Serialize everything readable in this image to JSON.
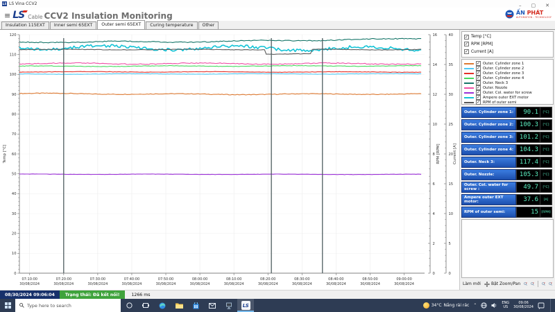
{
  "window": {
    "title": "LS Vina CCV2",
    "minimize": "–",
    "maximize": "▢",
    "close": "✕"
  },
  "header": {
    "menu_icon": "≡",
    "logo_main": "LS",
    "logo_sub": "Cable",
    "title": "CCV2 Insulation Monitoring",
    "brand_name_1": "ẤN",
    "brand_name_2": "PHÁT",
    "brand_tagline": "AUTOMATION - TECHNOLOGY"
  },
  "tabs": [
    {
      "label": "Insulation 115EXT",
      "active": false
    },
    {
      "label": "Inner semi 65EXT",
      "active": false
    },
    {
      "label": "Outer semi 65EXT",
      "active": true
    },
    {
      "label": "Curing temperature",
      "active": false
    },
    {
      "label": "Other",
      "active": false
    }
  ],
  "axis_toggles": [
    {
      "label": "Temp [°C]",
      "checked": true
    },
    {
      "label": "RPM [RPM]",
      "checked": true
    },
    {
      "label": "Current [A]",
      "checked": true
    }
  ],
  "legend": [
    {
      "label": "Outer. Cylinder zone 1",
      "color": "#dd7a33",
      "checked": true
    },
    {
      "label": "Outer. Cylinder zone 2",
      "color": "#4ec9f5",
      "checked": true
    },
    {
      "label": "Outer. Cylinder zone 3",
      "color": "#e33028",
      "checked": true
    },
    {
      "label": "Outer. Cylinder zone 4",
      "color": "#44d95c",
      "checked": true
    },
    {
      "label": "Outer. Neck 3",
      "color": "#157568",
      "checked": true
    },
    {
      "label": "Outer. Nozzle",
      "color": "#ee4fa5",
      "checked": true
    },
    {
      "label": "Outer. Col. water for screw",
      "color": "#9a2fd6",
      "checked": true
    },
    {
      "label": "Ampere outer EXT motor",
      "color": "#12c3d6",
      "checked": true
    },
    {
      "label": "RPM of outer semi",
      "color": "#5a5a5a",
      "checked": true
    }
  ],
  "readings": [
    {
      "label": "Outer. Cylinder zone 1:",
      "value": "90.1",
      "unit": "[°C]"
    },
    {
      "label": "Outer. Cylinder zone 2:",
      "value": "100.3",
      "unit": "[°C]"
    },
    {
      "label": "Outer. Cylinder zone 3:",
      "value": "101.2",
      "unit": "[°C]"
    },
    {
      "label": "Outer. Cylinder zone 4:",
      "value": "104.3",
      "unit": "[°C]"
    },
    {
      "label": "Outer. Neck 3:",
      "value": "117.4",
      "unit": "[°C]"
    },
    {
      "label": "Outer. Nozzle:",
      "value": "105.3",
      "unit": "[°C]"
    },
    {
      "label": "Outer. Col. water for screw :",
      "value": "49.7",
      "unit": "[°C]"
    },
    {
      "label": "Ampere outer EXT motor:",
      "value": "37.6",
      "unit": "[A]"
    },
    {
      "label": "RPM of outer semi:",
      "value": "15",
      "unit": "[RPM]"
    }
  ],
  "panel_buttons": {
    "refresh_label": "Làm mới",
    "zoom_pan_label": "Bật Zoom/Pan"
  },
  "statusbar": {
    "datetime": "08/30/2024 09:06:04",
    "connection": "Trạng thái: Đã kết nối!",
    "latency": "1266 ms"
  },
  "taskbar": {
    "search_placeholder": "Type here to search",
    "weather_temp": "34°C",
    "weather_desc": "Nắng rải rác",
    "lang_line1": "ENG",
    "lang_line2": "US",
    "clock_time": "09:06",
    "clock_date": "30/08/2024"
  },
  "chart_data": {
    "type": "line",
    "title": "",
    "x_minutes_range": [
      0,
      119
    ],
    "grid": true,
    "legend_position": "right-panel",
    "axes": {
      "temp": {
        "label": "Temp [°C]",
        "min": 0,
        "max": 120,
        "step": 10,
        "minor": 2
      },
      "rpm": {
        "label": "RPM [RPM]",
        "min": 0,
        "max": 16,
        "step": 2,
        "minor": 0.5
      },
      "current": {
        "label": "Current [A]",
        "min": 0,
        "max": 40,
        "step": 5,
        "minor": 1
      }
    },
    "x_ticks": [
      {
        "minute": 3,
        "time": "07:10:00",
        "date": "30/08/2024"
      },
      {
        "minute": 13,
        "time": "07:20:00",
        "date": "30/08/2024"
      },
      {
        "minute": 23,
        "time": "07:30:00",
        "date": "30/08/2024"
      },
      {
        "minute": 33,
        "time": "07:40:00",
        "date": "30/08/2024"
      },
      {
        "minute": 43,
        "time": "07:50:00",
        "date": "30/08/2024"
      },
      {
        "minute": 53,
        "time": "08:00:00",
        "date": "30/08/2024"
      },
      {
        "minute": 63,
        "time": "08:10:00",
        "date": "30/08/2024"
      },
      {
        "minute": 73,
        "time": "08:20:00",
        "date": "30/08/2024"
      },
      {
        "minute": 83,
        "time": "08:30:00",
        "date": "30/08/2024"
      },
      {
        "minute": 93,
        "time": "08:40:00",
        "date": "30/08/2024"
      },
      {
        "minute": 103,
        "time": "08:50:00",
        "date": "30/08/2024"
      },
      {
        "minute": 113,
        "time": "09:00:00",
        "date": "30/08/2024"
      }
    ],
    "markers_minutes": [
      13,
      74,
      89
    ],
    "series": [
      {
        "name": "Outer. Cylinder zone 1",
        "axis": "temp",
        "color": "#dd7a33",
        "width": 1.1,
        "noise": 0.3,
        "points": [
          [
            0,
            90.4
          ],
          [
            60,
            90.0
          ],
          [
            119,
            90.2
          ]
        ]
      },
      {
        "name": "Outer. Cylinder zone 2",
        "axis": "temp",
        "color": "#4ec9f5",
        "width": 1.1,
        "noise": 0.18,
        "points": [
          [
            0,
            100.2
          ],
          [
            119,
            100.3
          ]
        ]
      },
      {
        "name": "Outer. Cylinder zone 3",
        "axis": "temp",
        "color": "#e33028",
        "width": 1.1,
        "noise": 0.18,
        "points": [
          [
            0,
            101.3
          ],
          [
            119,
            101.2
          ]
        ]
      },
      {
        "name": "Outer. Cylinder zone 4",
        "axis": "temp",
        "color": "#44d95c",
        "width": 1.1,
        "noise": 0.22,
        "points": [
          [
            0,
            104.1
          ],
          [
            119,
            104.3
          ]
        ]
      },
      {
        "name": "Outer. Neck 3",
        "axis": "temp",
        "color": "#157568",
        "width": 1.1,
        "noise": 0.4,
        "points": [
          [
            0,
            116.3
          ],
          [
            55,
            116.5
          ],
          [
            119,
            118.0
          ]
        ]
      },
      {
        "name": "Outer. Nozzle",
        "axis": "temp",
        "color": "#ee4fa5",
        "width": 1.1,
        "noise": 0.4,
        "points": [
          [
            0,
            105.5
          ],
          [
            119,
            105.4
          ]
        ]
      },
      {
        "name": "Outer. Col. water for screw",
        "axis": "temp",
        "color": "#9a2fd6",
        "width": 1.1,
        "noise": 0.12,
        "points": [
          [
            0,
            49.8
          ],
          [
            119,
            49.7
          ]
        ]
      },
      {
        "name": "Ampere outer EXT motor",
        "axis": "current",
        "color": "#12c3d6",
        "width": 1.6,
        "noise": 0.45,
        "points": [
          [
            0,
            37.9
          ],
          [
            119,
            37.6
          ]
        ]
      },
      {
        "name": "RPM of outer semi",
        "axis": "rpm",
        "color": "#5a5a5a",
        "width": 1.1,
        "noise": 0.03,
        "points": [
          [
            0,
            15
          ],
          [
            72,
            15
          ],
          [
            72.5,
            14.7
          ],
          [
            85.5,
            14.7
          ],
          [
            86,
            15
          ],
          [
            119,
            15
          ]
        ]
      }
    ]
  }
}
